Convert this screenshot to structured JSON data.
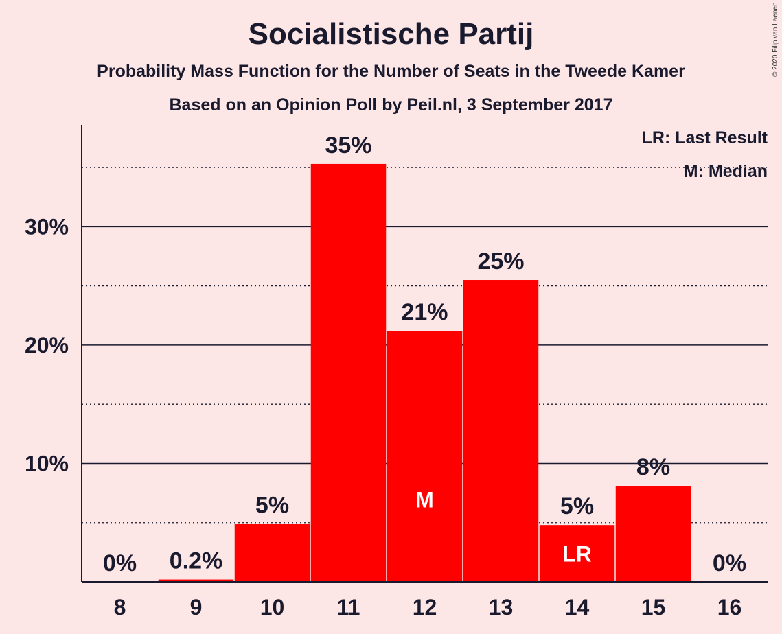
{
  "header": {
    "title": "Socialistische Partij",
    "subtitle": "Probability Mass Function for the Number of Seats in the Tweede Kamer",
    "source": "Based on an Opinion Poll by Peil.nl, 3 September 2017"
  },
  "copyright": "© 2020 Filip van Laenen",
  "legend": {
    "lr": "LR: Last Result",
    "median": "M: Median"
  },
  "colors": {
    "background": "#fde6e6",
    "bar": "#ff0000",
    "text": "#1a1a2e"
  },
  "chart_data": {
    "type": "bar",
    "categories": [
      "8",
      "9",
      "10",
      "11",
      "12",
      "13",
      "14",
      "15",
      "16"
    ],
    "values": [
      0,
      0.2,
      4.9,
      35.3,
      21.2,
      25.5,
      4.8,
      8.1,
      0
    ],
    "data_labels": [
      "0%",
      "0.2%",
      "5%",
      "35%",
      "21%",
      "25%",
      "5%",
      "8%",
      "0%"
    ],
    "bar_markers": [
      "",
      "",
      "",
      "",
      "M",
      "",
      "LR",
      "",
      ""
    ],
    "y_ticks": [
      {
        "value": 10,
        "label": "10%"
      },
      {
        "value": 20,
        "label": "20%"
      },
      {
        "value": 30,
        "label": "30%"
      }
    ],
    "minor_gridlines": [
      5,
      15,
      25,
      35
    ],
    "ylim": [
      0,
      38.6
    ],
    "xlabel": "",
    "ylabel": "",
    "legend_position": "top-right",
    "grid": true
  }
}
